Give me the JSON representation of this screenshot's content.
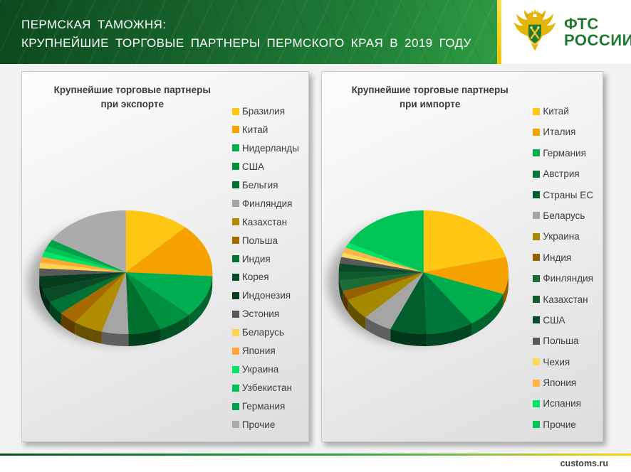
{
  "header": {
    "title_line1": "ПЕРМСКАЯ ТАМОЖНЯ:",
    "title_line2": "КРУПНЕЙШИЕ ТОРГОВЫЕ ПАРТНЕРЫ ПЕРМСКОГО КРАЯ В 2019 ГОДУ",
    "logo": {
      "line1": "ФТС",
      "line2": "РОССИИ"
    }
  },
  "footer": {
    "site": "customs.ru"
  },
  "colors": {
    "banner_green_dark": "#0D4A1F",
    "banner_green_light": "#2E9C44",
    "accent_yellow": "#FFD500",
    "logo_green": "#1E7A33",
    "text_gray": "#3D3D3D"
  },
  "chart_data": [
    {
      "type": "pie",
      "style": "3d",
      "title_line1": "Крупнейшие торговые партнеры",
      "title_line2": "при экспорте",
      "legend_position": "right",
      "values_are_estimates": true,
      "labels": [
        "Бразилия",
        "Китай",
        "Нидерланды",
        "США",
        "Бельгия",
        "Финляндия",
        "Казахстан",
        "Польша",
        "Индия",
        "Корея",
        "Индонезия",
        "Эстония",
        "Беларусь",
        "Япония",
        "Украина",
        "Узбекистан",
        "Германия",
        "Прочие"
      ],
      "values": [
        12,
        14,
        11,
        6.5,
        6,
        5,
        5.5,
        3.5,
        3.5,
        3.5,
        3.5,
        2,
        1.5,
        1.5,
        1.5,
        1.5,
        1.8,
        16.2
      ],
      "colors": [
        "#FFC613",
        "#F5A100",
        "#00B050",
        "#00913F",
        "#00702F",
        "#A5A5A5",
        "#B08C00",
        "#A66A00",
        "#007236",
        "#0A4A26",
        "#063D1E",
        "#595959",
        "#FFD34F",
        "#FFA836",
        "#00E566",
        "#00C455",
        "#00A14B",
        "#ABABAB"
      ]
    },
    {
      "type": "pie",
      "style": "3d",
      "title_line1": "Крупнейшие торговые партнеры",
      "title_line2": "при импорте",
      "legend_position": "right",
      "values_are_estimates": true,
      "labels": [
        "Китай",
        "Италия",
        "Германия",
        "Австрия",
        "Страны ЕС",
        "Беларусь",
        "Украина",
        "Индия",
        "Финляндия",
        "Казахстан",
        "США",
        "Польша",
        "Чехия",
        "Япония",
        "Испания",
        "Прочие"
      ],
      "values": [
        21,
        9.7,
        9.7,
        9,
        7,
        5.6,
        5.6,
        2.5,
        2.8,
        2.2,
        2.2,
        1.7,
        1.1,
        1.4,
        1.4,
        17.1
      ],
      "colors": [
        "#FFC613",
        "#F5A100",
        "#00AE4D",
        "#00783C",
        "#005F2D",
        "#A5A5A5",
        "#A58A00",
        "#965F00",
        "#1B6B36",
        "#0E5B2E",
        "#0A4A26",
        "#595959",
        "#FFDA5A",
        "#FFB547",
        "#00E566",
        "#00C455"
      ]
    }
  ]
}
